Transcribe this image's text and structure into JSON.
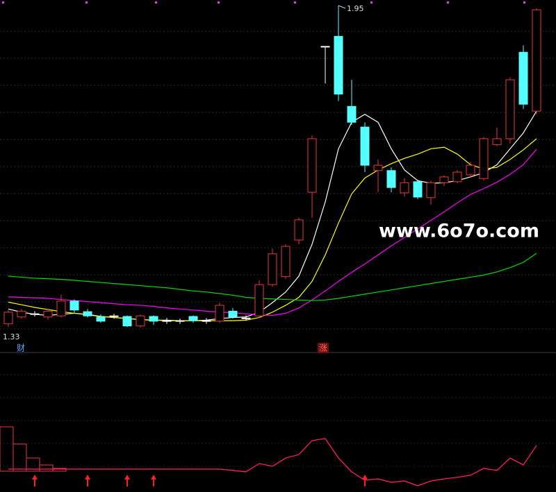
{
  "chart_data": [
    {
      "type": "candlestick",
      "ylim": [
        1.33,
        1.95
      ],
      "up_color": "#e8383d",
      "down_color": "#54ffff",
      "flat_color": "#ffffff",
      "open": [
        1.35,
        1.363,
        1.369,
        1.363,
        1.365,
        1.393,
        1.373,
        1.363,
        1.365,
        1.364,
        1.346,
        1.364,
        1.356,
        1.356,
        1.364,
        1.356,
        1.355,
        1.374,
        1.361,
        1.365,
        1.424,
        1.439,
        1.508,
        1.598,
        1.873,
        1.892,
        1.76,
        1.721,
        1.639,
        1.639,
        1.597,
        1.618,
        1.588,
        1.616,
        1.618,
        1.631,
        1.624,
        1.688,
        1.699,
        1.862,
        1.751
      ],
      "high": [
        1.376,
        1.378,
        1.374,
        1.378,
        1.405,
        1.396,
        1.378,
        1.368,
        1.369,
        1.366,
        1.368,
        1.366,
        1.361,
        1.36,
        1.366,
        1.361,
        1.39,
        1.38,
        1.366,
        1.432,
        1.492,
        1.5,
        1.55,
        1.705,
        1.873,
        1.95,
        1.81,
        1.73,
        1.66,
        1.645,
        1.625,
        1.622,
        1.62,
        1.63,
        1.64,
        1.655,
        1.702,
        1.72,
        1.815,
        1.875,
        1.945
      ],
      "low": [
        1.344,
        1.36,
        1.364,
        1.358,
        1.362,
        1.37,
        1.362,
        1.352,
        1.36,
        1.344,
        1.343,
        1.348,
        1.35,
        1.35,
        1.352,
        1.35,
        1.352,
        1.36,
        1.356,
        1.362,
        1.42,
        1.435,
        1.5,
        1.55,
        1.803,
        1.77,
        1.725,
        1.636,
        1.598,
        1.598,
        1.59,
        1.585,
        1.575,
        1.61,
        1.615,
        1.625,
        1.62,
        1.685,
        1.69,
        1.755,
        1.745
      ],
      "close": [
        1.372,
        1.374,
        1.369,
        1.374,
        1.393,
        1.376,
        1.365,
        1.355,
        1.365,
        1.346,
        1.365,
        1.355,
        1.356,
        1.356,
        1.356,
        1.356,
        1.385,
        1.363,
        1.361,
        1.424,
        1.482,
        1.496,
        1.546,
        1.699,
        1.873,
        1.783,
        1.73,
        1.649,
        1.649,
        1.607,
        1.616,
        1.589,
        1.616,
        1.627,
        1.636,
        1.649,
        1.699,
        1.699,
        1.81,
        1.764,
        1.942
      ],
      "series": [
        {
          "color": "#ffffff",
          "values": [
            1.378,
            1.372,
            1.368,
            1.366,
            1.368,
            1.37,
            1.368,
            1.364,
            1.362,
            1.36,
            1.358,
            1.357,
            1.357,
            1.356,
            1.356,
            1.357,
            1.36,
            1.362,
            1.363,
            1.372,
            1.39,
            1.41,
            1.44,
            1.5,
            1.58,
            1.68,
            1.73,
            1.745,
            1.73,
            1.68,
            1.64,
            1.62,
            1.615,
            1.616,
            1.62,
            1.627,
            1.635,
            1.65,
            1.68,
            1.71,
            1.751
          ]
        },
        {
          "color": "#ffff00",
          "values": [
            1.391,
            1.386,
            1.381,
            1.377,
            1.373,
            1.37,
            1.367,
            1.364,
            1.362,
            1.36,
            1.358,
            1.357,
            1.356,
            1.356,
            1.356,
            1.356,
            1.356,
            1.356,
            1.357,
            1.362,
            1.372,
            1.385,
            1.4,
            1.43,
            1.48,
            1.54,
            1.595,
            1.625,
            1.64,
            1.652,
            1.662,
            1.67,
            1.68,
            1.683,
            1.67,
            1.65,
            1.642,
            1.645,
            1.66,
            1.678,
            1.699
          ]
        },
        {
          "color": "#ff00ff",
          "values": [
            1.401,
            1.4,
            1.399,
            1.398,
            1.396,
            1.394,
            1.392,
            1.39,
            1.388,
            1.386,
            1.385,
            1.383,
            1.38,
            1.378,
            1.376,
            1.374,
            1.372,
            1.371,
            1.369,
            1.367,
            1.366,
            1.37,
            1.38,
            1.395,
            1.412,
            1.43,
            1.447,
            1.463,
            1.48,
            1.497,
            1.513,
            1.529,
            1.545,
            1.561,
            1.578,
            1.594,
            1.605,
            1.617,
            1.632,
            1.65,
            1.679
          ]
        },
        {
          "color": "#00dd00",
          "values": [
            1.44,
            1.438,
            1.436,
            1.435,
            1.434,
            1.432,
            1.43,
            1.428,
            1.426,
            1.424,
            1.422,
            1.42,
            1.418,
            1.415,
            1.412,
            1.41,
            1.407,
            1.404,
            1.4,
            1.398,
            1.397,
            1.396,
            1.395,
            1.394,
            1.395,
            1.398,
            1.402,
            1.406,
            1.41,
            1.414,
            1.418,
            1.422,
            1.426,
            1.43,
            1.434,
            1.438,
            1.442,
            1.448,
            1.456,
            1.466,
            1.483
          ]
        }
      ],
      "annotations": [
        "1.95",
        "1.33"
      ]
    },
    {
      "type": "line",
      "ylim": [
        0,
        100
      ],
      "color": "#ff1a6e",
      "values": [
        16.6,
        16.6,
        16.6,
        16.6,
        16.6,
        16.6,
        16.6,
        16.6,
        16.6,
        16.6,
        16.6,
        16.6,
        16.6,
        16.6,
        16.6,
        16.6,
        16.6,
        15.6,
        14.6,
        20.6,
        18.6,
        24.6,
        27.1,
        37.2,
        38.7,
        24.6,
        14.6,
        8.5,
        9.5,
        7.0,
        8.0,
        4.5,
        8.0,
        9.5,
        10.6,
        12.1,
        17.1,
        15.6,
        24.6,
        19.6,
        33.7
      ],
      "bars": [
        47.2,
        34.7,
        24.6,
        19.6,
        17.1
      ],
      "bar_color": "#e8383d",
      "signal_index": [
        2,
        6,
        9,
        11,
        27
      ],
      "signal_color": "#ff2020"
    }
  ],
  "markers": [
    "财",
    "涨"
  ],
  "watermark": "www.6o7o.com"
}
